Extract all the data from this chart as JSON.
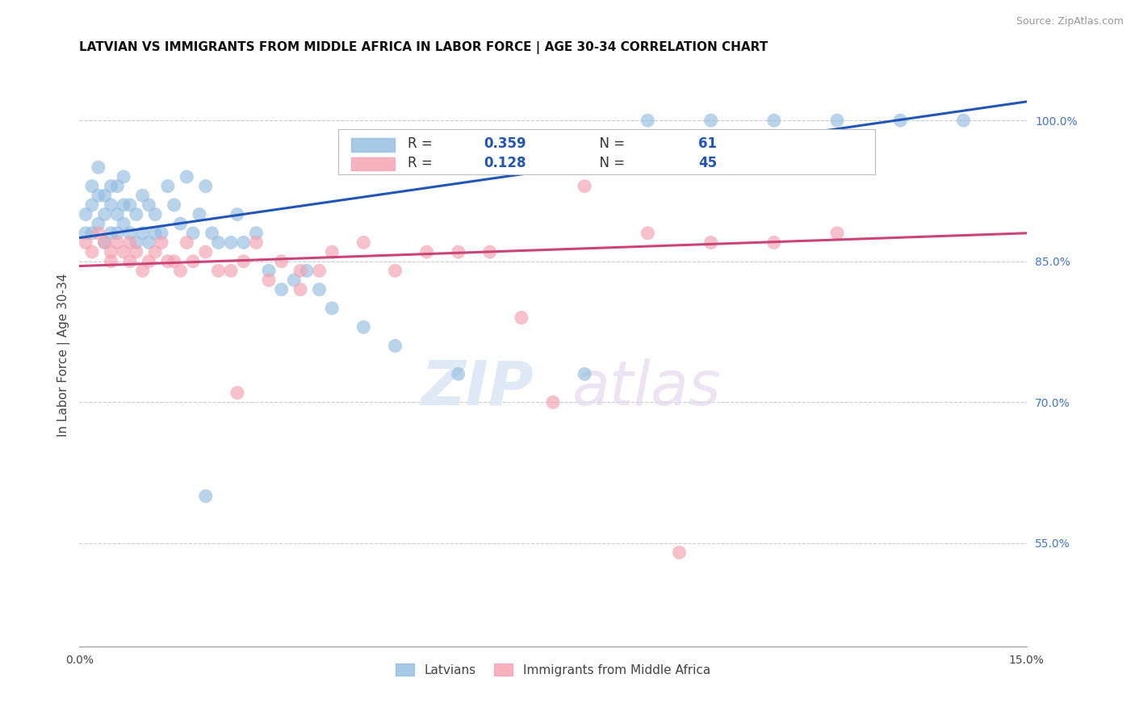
{
  "title": "LATVIAN VS IMMIGRANTS FROM MIDDLE AFRICA IN LABOR FORCE | AGE 30-34 CORRELATION CHART",
  "source": "Source: ZipAtlas.com",
  "ylabel_label": "In Labor Force | Age 30-34",
  "legend_labels": [
    "Latvians",
    "Immigrants from Middle Africa"
  ],
  "R_blue": 0.359,
  "N_blue": 61,
  "R_pink": 0.128,
  "N_pink": 45,
  "blue_color": "#92bce0",
  "pink_color": "#f4a0b0",
  "blue_line_color": "#2255bb",
  "pink_line_color": "#cc4477",
  "blue_scatter_x": [
    0.001,
    0.001,
    0.002,
    0.002,
    0.002,
    0.003,
    0.003,
    0.003,
    0.004,
    0.004,
    0.004,
    0.005,
    0.005,
    0.005,
    0.006,
    0.006,
    0.006,
    0.007,
    0.007,
    0.007,
    0.008,
    0.008,
    0.009,
    0.009,
    0.01,
    0.01,
    0.011,
    0.011,
    0.012,
    0.012,
    0.013,
    0.014,
    0.015,
    0.016,
    0.017,
    0.018,
    0.019,
    0.02,
    0.021,
    0.022,
    0.024,
    0.025,
    0.026,
    0.028,
    0.03,
    0.032,
    0.034,
    0.036,
    0.038,
    0.04,
    0.045,
    0.05,
    0.06,
    0.08,
    0.09,
    0.1,
    0.11,
    0.12,
    0.13,
    0.14,
    0.02
  ],
  "blue_scatter_y": [
    0.88,
    0.9,
    0.91,
    0.93,
    0.88,
    0.92,
    0.95,
    0.89,
    0.9,
    0.92,
    0.87,
    0.93,
    0.91,
    0.88,
    0.93,
    0.9,
    0.88,
    0.94,
    0.91,
    0.89,
    0.91,
    0.88,
    0.9,
    0.87,
    0.92,
    0.88,
    0.91,
    0.87,
    0.9,
    0.88,
    0.88,
    0.93,
    0.91,
    0.89,
    0.94,
    0.88,
    0.9,
    0.93,
    0.88,
    0.87,
    0.87,
    0.9,
    0.87,
    0.88,
    0.84,
    0.82,
    0.83,
    0.84,
    0.82,
    0.8,
    0.78,
    0.76,
    0.73,
    0.73,
    1.0,
    1.0,
    1.0,
    1.0,
    1.0,
    1.0,
    0.6
  ],
  "pink_scatter_x": [
    0.001,
    0.002,
    0.003,
    0.004,
    0.005,
    0.005,
    0.006,
    0.007,
    0.008,
    0.008,
    0.009,
    0.01,
    0.011,
    0.012,
    0.013,
    0.014,
    0.015,
    0.016,
    0.017,
    0.018,
    0.02,
    0.022,
    0.024,
    0.026,
    0.028,
    0.03,
    0.032,
    0.035,
    0.038,
    0.04,
    0.045,
    0.05,
    0.06,
    0.065,
    0.07,
    0.08,
    0.09,
    0.1,
    0.11,
    0.12,
    0.025,
    0.035,
    0.055,
    0.075,
    0.095
  ],
  "pink_scatter_y": [
    0.87,
    0.86,
    0.88,
    0.87,
    0.85,
    0.86,
    0.87,
    0.86,
    0.85,
    0.87,
    0.86,
    0.84,
    0.85,
    0.86,
    0.87,
    0.85,
    0.85,
    0.84,
    0.87,
    0.85,
    0.86,
    0.84,
    0.84,
    0.85,
    0.87,
    0.83,
    0.85,
    0.82,
    0.84,
    0.86,
    0.87,
    0.84,
    0.86,
    0.86,
    0.79,
    0.93,
    0.88,
    0.87,
    0.87,
    0.88,
    0.71,
    0.84,
    0.86,
    0.7,
    0.54
  ]
}
